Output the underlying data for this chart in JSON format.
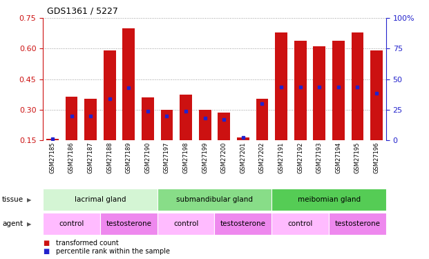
{
  "title": "GDS1361 / 5227",
  "samples": [
    "GSM27185",
    "GSM27186",
    "GSM27187",
    "GSM27188",
    "GSM27189",
    "GSM27190",
    "GSM27197",
    "GSM27198",
    "GSM27199",
    "GSM27200",
    "GSM27201",
    "GSM27202",
    "GSM27191",
    "GSM27192",
    "GSM27193",
    "GSM27194",
    "GSM27195",
    "GSM27196"
  ],
  "red_values": [
    0.155,
    0.365,
    0.355,
    0.592,
    0.7,
    0.36,
    0.298,
    0.375,
    0.298,
    0.285,
    0.162,
    0.352,
    0.678,
    0.638,
    0.612,
    0.638,
    0.678,
    0.592
  ],
  "blue_values": [
    0.158,
    0.268,
    0.268,
    0.352,
    0.408,
    0.292,
    0.268,
    0.292,
    0.258,
    0.253,
    0.164,
    0.328,
    0.412,
    0.412,
    0.412,
    0.412,
    0.412,
    0.382
  ],
  "ymin": 0.15,
  "ymax": 0.75,
  "yticks": [
    0.15,
    0.3,
    0.45,
    0.6,
    0.75
  ],
  "right_yticks_vals": [
    0,
    25,
    50,
    75,
    100
  ],
  "right_yticks_labels": [
    "0",
    "25",
    "50",
    "75",
    "100%"
  ],
  "tissue_groups": [
    {
      "label": "lacrimal gland",
      "start": 0,
      "end": 6,
      "color": "#d4f5d4"
    },
    {
      "label": "submandibular gland",
      "start": 6,
      "end": 12,
      "color": "#88dd88"
    },
    {
      "label": "meibomian gland",
      "start": 12,
      "end": 18,
      "color": "#55cc55"
    }
  ],
  "agent_groups": [
    {
      "label": "control",
      "start": 0,
      "end": 3,
      "color": "#ffbbff"
    },
    {
      "label": "testosterone",
      "start": 3,
      "end": 6,
      "color": "#ee88ee"
    },
    {
      "label": "control",
      "start": 6,
      "end": 9,
      "color": "#ffbbff"
    },
    {
      "label": "testosterone",
      "start": 9,
      "end": 12,
      "color": "#ee88ee"
    },
    {
      "label": "control",
      "start": 12,
      "end": 15,
      "color": "#ffbbff"
    },
    {
      "label": "testosterone",
      "start": 15,
      "end": 18,
      "color": "#ee88ee"
    }
  ],
  "bar_color": "#cc1111",
  "dot_color": "#2222cc",
  "bar_width": 0.65,
  "base_value": 0.15,
  "legend_red": "transformed count",
  "legend_blue": "percentile rank within the sample",
  "left_tick_color": "#cc1111",
  "right_axis_color": "#2222cc",
  "grid_color": "#999999",
  "plot_bg_color": "#ffffff",
  "fig_bg_color": "#ffffff"
}
